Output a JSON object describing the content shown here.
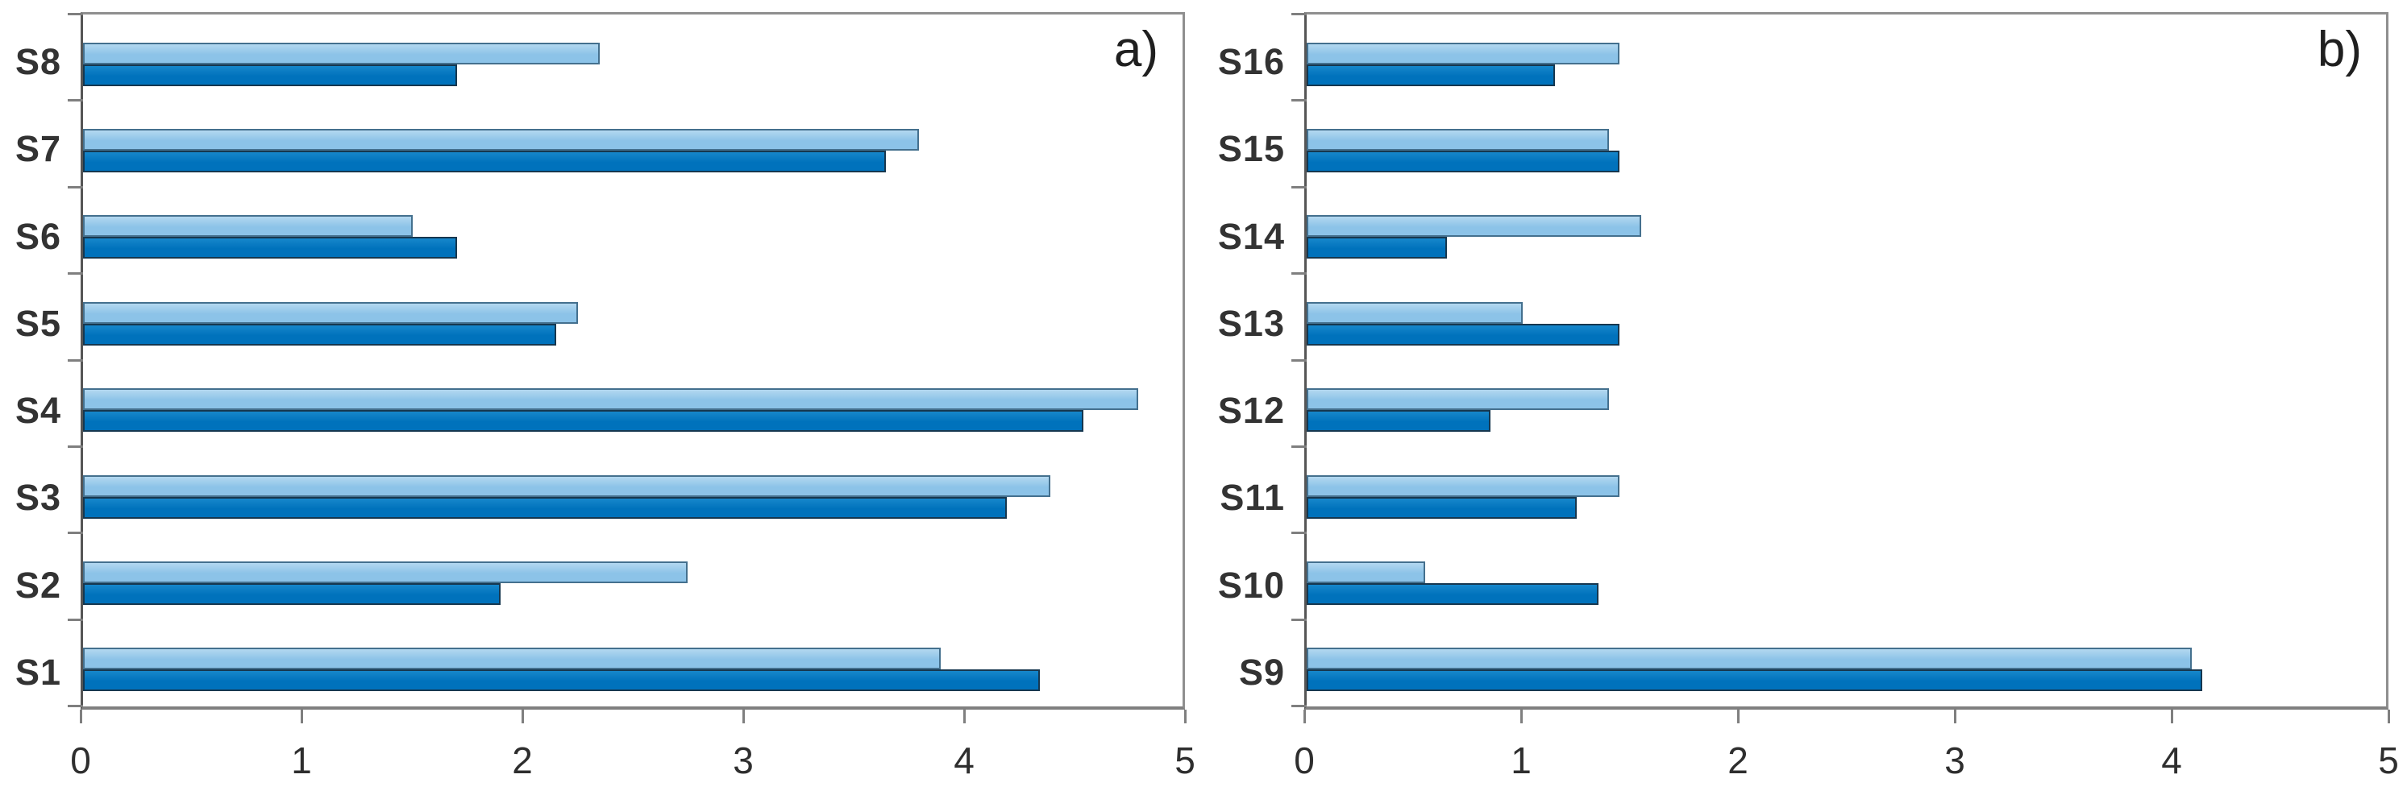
{
  "figure": {
    "background_color": "#ffffff",
    "text_color": "#333333",
    "axis_color": "#7f7f7f"
  },
  "chart_data": [
    {
      "type": "bar",
      "orientation": "horizontal",
      "panel_label": "a)",
      "title": "",
      "xlabel": "",
      "ylabel": "",
      "grid": false,
      "legend": false,
      "xlim": [
        0,
        5
      ],
      "xticks": [
        0,
        1,
        2,
        3,
        4,
        5
      ],
      "categories": [
        "S8",
        "S7",
        "S6",
        "S5",
        "S4",
        "S3",
        "S2",
        "S1"
      ],
      "series": [
        {
          "name": "light-blue-series",
          "fill": "#8cc3e8",
          "fill_top": "#b3d8f0",
          "border": "#44708e",
          "values": [
            2.35,
            3.8,
            1.5,
            2.25,
            4.8,
            4.4,
            2.75,
            3.9
          ]
        },
        {
          "name": "dark-blue-series",
          "fill": "#0072bc",
          "fill_top": "#1787cb",
          "border": "#16374f",
          "values": [
            1.7,
            3.65,
            1.7,
            2.15,
            4.55,
            4.2,
            1.9,
            4.35
          ]
        }
      ]
    },
    {
      "type": "bar",
      "orientation": "horizontal",
      "panel_label": "b)",
      "title": "",
      "xlabel": "",
      "ylabel": "",
      "grid": false,
      "legend": false,
      "xlim": [
        0,
        5
      ],
      "xticks": [
        0,
        1,
        2,
        3,
        4,
        5
      ],
      "categories": [
        "S16",
        "S15",
        "S14",
        "S13",
        "S12",
        "S11",
        "S10",
        "S9"
      ],
      "series": [
        {
          "name": "light-blue-series",
          "fill": "#8cc3e8",
          "fill_top": "#b3d8f0",
          "border": "#44708e",
          "values": [
            1.45,
            1.4,
            1.55,
            1.0,
            1.4,
            1.45,
            0.55,
            4.1
          ]
        },
        {
          "name": "dark-blue-series",
          "fill": "#0072bc",
          "fill_top": "#1787cb",
          "border": "#16374f",
          "values": [
            1.15,
            1.45,
            0.65,
            1.45,
            0.85,
            1.25,
            1.35,
            4.15
          ]
        }
      ]
    }
  ]
}
